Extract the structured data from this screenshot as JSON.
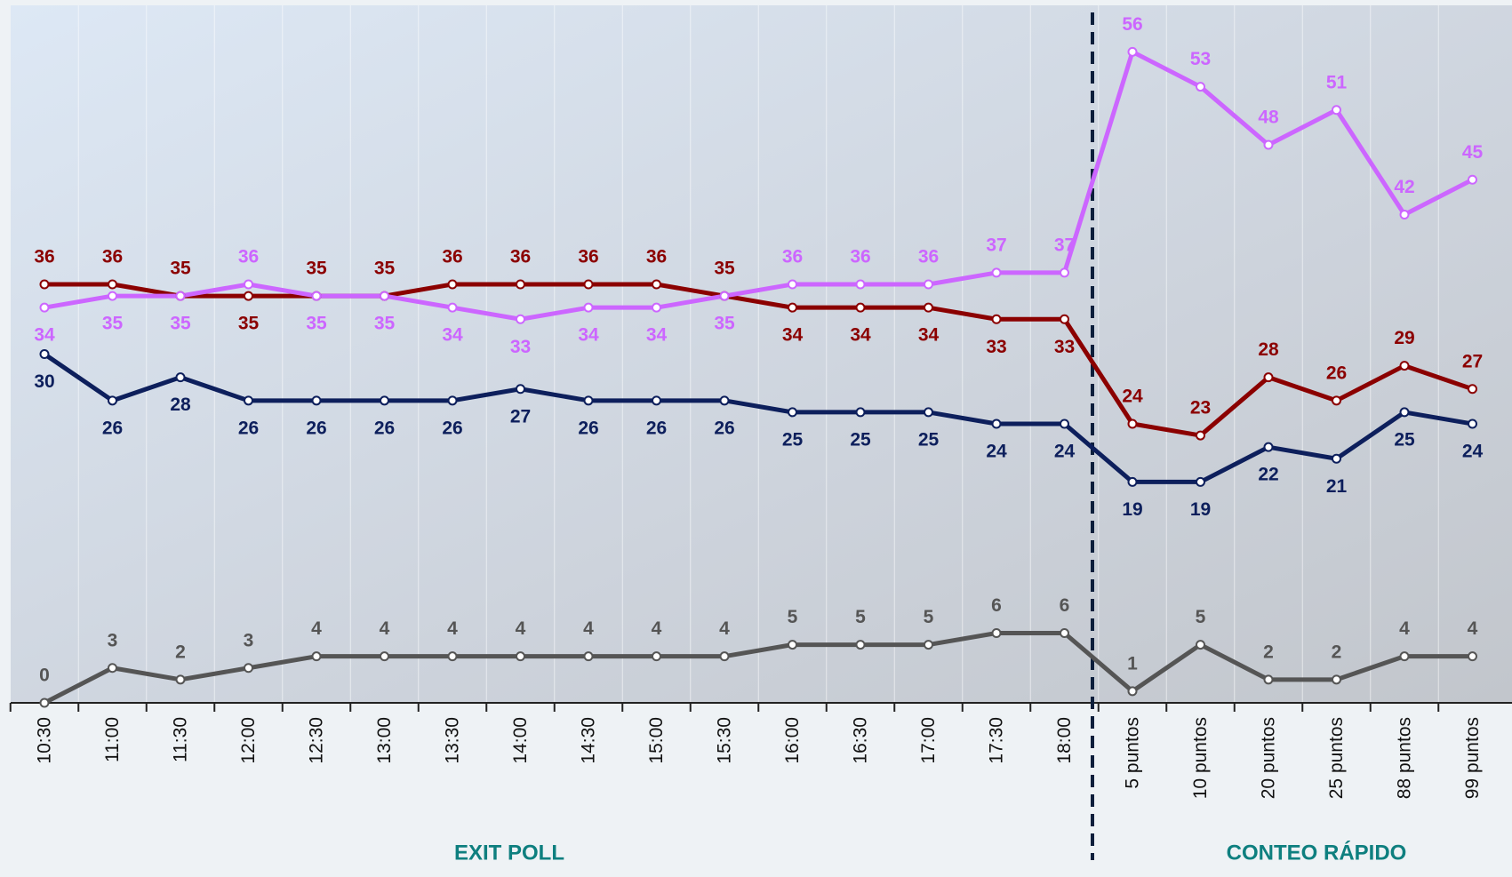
{
  "chart_data": {
    "type": "line",
    "categories": [
      "10:30",
      "11:00",
      "11:30",
      "12:00",
      "12:30",
      "13:00",
      "13:30",
      "14:00",
      "14:30",
      "15:00",
      "15:30",
      "16:00",
      "16:30",
      "17:00",
      "17:30",
      "18:00",
      "5 puntos",
      "10 puntos",
      "20 puntos",
      "25 puntos",
      "88 puntos",
      "99 puntos"
    ],
    "series": [
      {
        "color": "#8b0000",
        "values": [
          36,
          36,
          35,
          35,
          35,
          35,
          36,
          36,
          36,
          36,
          35,
          34,
          34,
          34,
          33,
          33,
          24,
          23,
          28,
          26,
          29,
          27
        ]
      },
      {
        "color": "#cc66ff",
        "values": [
          34,
          35,
          35,
          36,
          35,
          35,
          34,
          33,
          34,
          34,
          35,
          36,
          36,
          36,
          37,
          37,
          56,
          53,
          48,
          51,
          42,
          45
        ]
      },
      {
        "color": "#0d1f5c",
        "values": [
          30,
          26,
          28,
          26,
          26,
          26,
          26,
          27,
          26,
          26,
          26,
          25,
          25,
          25,
          24,
          24,
          19,
          19,
          22,
          21,
          25,
          24
        ]
      },
      {
        "color": "#555555",
        "values": [
          0,
          3,
          2,
          3,
          4,
          4,
          4,
          4,
          4,
          4,
          4,
          5,
          5,
          5,
          6,
          6,
          1,
          5,
          2,
          2,
          4,
          4
        ]
      }
    ],
    "ylim": [
      0,
      60
    ],
    "annotations": [
      "EXIT POLL",
      "CONTEO RÁPIDO"
    ]
  }
}
